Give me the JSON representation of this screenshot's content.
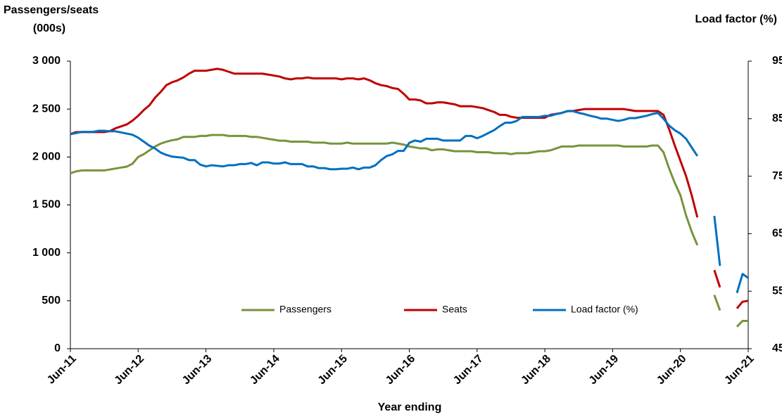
{
  "chart_data": {
    "type": "line",
    "y_label": [
      "Passengers/seats",
      "(000s)"
    ],
    "y2_label": "Load factor (%)",
    "x_label": "Year ending",
    "categories": [
      "Jun-11",
      null,
      null,
      null,
      null,
      null,
      null,
      null,
      null,
      null,
      null,
      null,
      "Jun-12",
      null,
      null,
      null,
      null,
      null,
      null,
      null,
      null,
      null,
      null,
      null,
      "Jun-13",
      null,
      null,
      null,
      null,
      null,
      null,
      null,
      null,
      null,
      null,
      null,
      "Jun-14",
      null,
      null,
      null,
      null,
      null,
      null,
      null,
      null,
      null,
      null,
      null,
      "Jun-15",
      null,
      null,
      null,
      null,
      null,
      null,
      null,
      null,
      null,
      null,
      null,
      "Jun-16",
      null,
      null,
      null,
      null,
      null,
      null,
      null,
      null,
      null,
      null,
      null,
      "Jun-17",
      null,
      null,
      null,
      null,
      null,
      null,
      null,
      null,
      null,
      null,
      null,
      "Jun-18",
      null,
      null,
      null,
      null,
      null,
      null,
      null,
      null,
      null,
      null,
      null,
      "Jun-19",
      null,
      null,
      null,
      null,
      null,
      null,
      null,
      null,
      null,
      null,
      null,
      "Jun-20",
      null,
      null,
      null,
      null,
      null,
      null,
      null,
      null,
      null,
      null,
      null,
      "Jun-21"
    ],
    "series": [
      {
        "name": "Passengers",
        "color": "#77933c",
        "axis": "y",
        "values": [
          1830,
          1850,
          1860,
          1860,
          1860,
          1860,
          1860,
          1870,
          1880,
          1890,
          1900,
          1930,
          2000,
          2030,
          2070,
          2110,
          2140,
          2160,
          2175,
          2185,
          2210,
          2210,
          2210,
          2220,
          2220,
          2230,
          2230,
          2230,
          2220,
          2220,
          2220,
          2220,
          2210,
          2210,
          2200,
          2190,
          2180,
          2170,
          2170,
          2160,
          2160,
          2160,
          2160,
          2150,
          2150,
          2150,
          2140,
          2140,
          2140,
          2150,
          2140,
          2140,
          2140,
          2140,
          2140,
          2140,
          2140,
          2150,
          2140,
          2130,
          2110,
          2100,
          2090,
          2090,
          2070,
          2080,
          2080,
          2070,
          2060,
          2060,
          2060,
          2060,
          2050,
          2050,
          2050,
          2040,
          2040,
          2040,
          2030,
          2040,
          2040,
          2040,
          2050,
          2060,
          2060,
          2070,
          2090,
          2110,
          2110,
          2110,
          2120,
          2120,
          2120,
          2120,
          2120,
          2120,
          2120,
          2120,
          2110,
          2110,
          2110,
          2110,
          2110,
          2120,
          2120,
          2050,
          1880,
          1730,
          1600,
          1390,
          1220,
          1080,
          null,
          null,
          560,
          400,
          null,
          null,
          230,
          290,
          290
        ]
      },
      {
        "name": "Seats",
        "color": "#c00000",
        "axis": "y",
        "values": [
          2240,
          2260,
          2260,
          2260,
          2260,
          2260,
          2260,
          2270,
          2300,
          2320,
          2340,
          2380,
          2430,
          2490,
          2540,
          2620,
          2680,
          2750,
          2780,
          2800,
          2830,
          2870,
          2900,
          2900,
          2900,
          2910,
          2920,
          2910,
          2890,
          2870,
          2870,
          2870,
          2870,
          2870,
          2870,
          2860,
          2850,
          2840,
          2820,
          2810,
          2820,
          2820,
          2830,
          2820,
          2820,
          2820,
          2820,
          2820,
          2810,
          2820,
          2820,
          2810,
          2820,
          2800,
          2770,
          2750,
          2740,
          2720,
          2710,
          2660,
          2600,
          2600,
          2590,
          2560,
          2560,
          2570,
          2570,
          2560,
          2550,
          2530,
          2530,
          2530,
          2520,
          2510,
          2490,
          2470,
          2440,
          2440,
          2420,
          2410,
          2410,
          2410,
          2410,
          2410,
          2410,
          2440,
          2450,
          2460,
          2480,
          2480,
          2490,
          2500,
          2500,
          2500,
          2500,
          2500,
          2500,
          2500,
          2500,
          2490,
          2480,
          2480,
          2480,
          2480,
          2480,
          2440,
          2290,
          2120,
          1960,
          1800,
          1600,
          1370,
          null,
          null,
          820,
          640,
          null,
          null,
          420,
          490,
          500
        ]
      },
      {
        "name": "Load factor (%)",
        "color": "#0070c0",
        "axis": "y2",
        "values": [
          82.3,
          82.5,
          82.7,
          82.7,
          82.7,
          82.9,
          82.9,
          82.8,
          82.8,
          82.6,
          82.4,
          82.2,
          81.7,
          81.0,
          80.3,
          79.8,
          79.1,
          78.7,
          78.4,
          78.3,
          78.2,
          77.8,
          77.8,
          77.0,
          76.7,
          76.9,
          76.8,
          76.7,
          76.9,
          76.9,
          77.1,
          77.1,
          77.3,
          76.9,
          77.4,
          77.4,
          77.2,
          77.2,
          77.4,
          77.1,
          77.1,
          77.1,
          76.7,
          76.7,
          76.4,
          76.4,
          76.2,
          76.2,
          76.3,
          76.3,
          76.5,
          76.2,
          76.5,
          76.5,
          76.9,
          77.8,
          78.5,
          78.8,
          79.4,
          79.4,
          80.8,
          81.2,
          81.0,
          81.5,
          81.5,
          81.5,
          81.2,
          81.2,
          81.2,
          81.2,
          82.0,
          82.0,
          81.6,
          82.0,
          82.5,
          83.0,
          83.7,
          84.3,
          84.3,
          84.6,
          85.3,
          85.3,
          85.3,
          85.3,
          85.5,
          85.5,
          85.8,
          86.0,
          86.3,
          86.3,
          86.0,
          85.8,
          85.5,
          85.3,
          85.0,
          85.0,
          84.8,
          84.6,
          84.8,
          85.1,
          85.1,
          85.3,
          85.5,
          85.8,
          86.0,
          85.0,
          83.8,
          83.0,
          82.4,
          81.5,
          80.0,
          78.5,
          null,
          null,
          68.1,
          59.4,
          null,
          null,
          54.7,
          58.0,
          57.3
        ]
      }
    ],
    "ylim": [
      0,
      3000
    ],
    "yticks": [
      0,
      500,
      {
        "value": 1000,
        "label": "1 000"
      },
      {
        "value": 1500,
        "label": "1 500"
      },
      {
        "value": 2000,
        "label": "2 000"
      },
      {
        "value": 2500,
        "label": "2 500"
      },
      {
        "value": 3000,
        "label": "3 000"
      }
    ],
    "y2lim": [
      45,
      95
    ],
    "y2ticks": [
      45,
      55,
      65,
      75,
      85,
      95
    ],
    "grid": false,
    "legend": "bottom"
  }
}
